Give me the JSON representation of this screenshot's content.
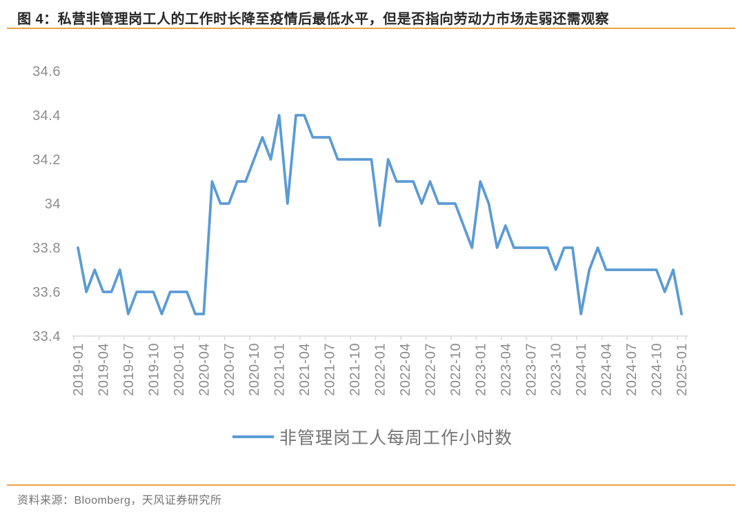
{
  "title": {
    "prefix": "图 4：私营非管理岗工人的工作时长降至疫情后最低水平，但是否指向劳动力市场",
    "underlined": "走弱还需",
    "suffix": "观察"
  },
  "legend": {
    "label": "非管理岗工人每周工作小时数"
  },
  "source": {
    "text": "资料来源：Bloomberg，天风证券研究所"
  },
  "colors": {
    "line": "#5B9BD5",
    "rule": "#E9A23C",
    "axis": "#D9D9D9",
    "tick_label": "#8C8C8C",
    "title_text": "#262626",
    "gray_text": "#737373",
    "title_underline": "#5B9BD5"
  },
  "chart_data": {
    "type": "line",
    "title": "",
    "series_name": "非管理岗工人每周工作小时数",
    "xlabel": "",
    "ylabel": "",
    "ylim": [
      33.4,
      34.6
    ],
    "grid": false,
    "legend_position": "bottom",
    "y_tick_labels": [
      "33.4",
      "33.6",
      "33.8",
      "34",
      "34.2",
      "34.4",
      "34.6"
    ],
    "x_tick_labels": [
      "2019-01",
      "2019-04",
      "2019-07",
      "2019-10",
      "2020-01",
      "2020-04",
      "2020-07",
      "2020-10",
      "2021-01",
      "2021-04",
      "2021-07",
      "2021-10",
      "2022-01",
      "2022-04",
      "2022-07",
      "2022-10",
      "2023-01",
      "2023-04",
      "2023-07",
      "2023-10",
      "2024-01",
      "2024-04",
      "2024-07",
      "2024-10",
      "2025-01"
    ],
    "x": [
      "2019-01",
      "2019-02",
      "2019-03",
      "2019-04",
      "2019-05",
      "2019-06",
      "2019-07",
      "2019-08",
      "2019-09",
      "2019-10",
      "2019-11",
      "2019-12",
      "2020-01",
      "2020-02",
      "2020-03",
      "2020-04",
      "2020-05",
      "2020-06",
      "2020-07",
      "2020-08",
      "2020-09",
      "2020-10",
      "2020-11",
      "2020-12",
      "2021-01",
      "2021-02",
      "2021-03",
      "2021-04",
      "2021-05",
      "2021-06",
      "2021-07",
      "2021-08",
      "2021-09",
      "2021-10",
      "2021-11",
      "2021-12",
      "2022-01",
      "2022-02",
      "2022-03",
      "2022-04",
      "2022-05",
      "2022-06",
      "2022-07",
      "2022-08",
      "2022-09",
      "2022-10",
      "2022-11",
      "2022-12",
      "2023-01",
      "2023-02",
      "2023-03",
      "2023-04",
      "2023-05",
      "2023-06",
      "2023-07",
      "2023-08",
      "2023-09",
      "2023-10",
      "2023-11",
      "2023-12",
      "2024-01",
      "2024-02",
      "2024-03",
      "2024-04",
      "2024-05",
      "2024-06",
      "2024-07",
      "2024-08",
      "2024-09",
      "2024-10",
      "2024-11",
      "2024-12",
      "2025-01"
    ],
    "values": [
      33.8,
      33.6,
      33.7,
      33.6,
      33.6,
      33.7,
      33.5,
      33.6,
      33.6,
      33.6,
      33.5,
      33.6,
      33.6,
      33.6,
      33.5,
      33.5,
      34.1,
      34.0,
      34.0,
      34.1,
      34.1,
      34.2,
      34.3,
      34.2,
      34.4,
      34.0,
      34.4,
      34.4,
      34.3,
      34.3,
      34.3,
      34.2,
      34.2,
      34.2,
      34.2,
      34.2,
      33.9,
      34.2,
      34.1,
      34.1,
      34.1,
      34.0,
      34.1,
      34.0,
      34.0,
      34.0,
      33.9,
      33.8,
      34.1,
      34.0,
      33.8,
      33.9,
      33.8,
      33.8,
      33.8,
      33.8,
      33.8,
      33.7,
      33.8,
      33.8,
      33.5,
      33.7,
      33.8,
      33.7,
      33.7,
      33.7,
      33.7,
      33.7,
      33.7,
      33.7,
      33.6,
      33.7,
      33.5
    ]
  }
}
